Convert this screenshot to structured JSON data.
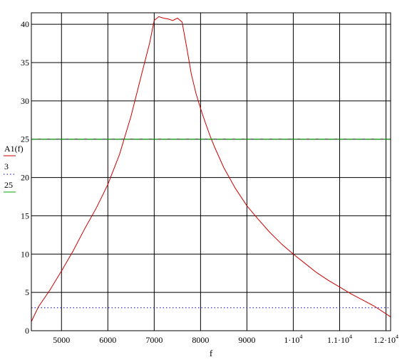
{
  "chart_data": {
    "type": "line",
    "xlabel": "f",
    "xlim": [
      4350,
      12100
    ],
    "ylim": [
      0,
      41.5
    ],
    "grid": true,
    "x_ticks": [
      {
        "value": 5000,
        "label": "5000"
      },
      {
        "value": 6000,
        "label": "6000"
      },
      {
        "value": 7000,
        "label": "7000"
      },
      {
        "value": 8000,
        "label": "8000"
      },
      {
        "value": 9000,
        "label": "9000"
      },
      {
        "value": 10000,
        "label": "1·10",
        "exp": "4"
      },
      {
        "value": 11000,
        "label": "1.1·10",
        "exp": "4"
      },
      {
        "value": 12000,
        "label": "1.2·10",
        "exp": "4"
      }
    ],
    "y_ticks": [
      {
        "value": 0,
        "label": "0"
      },
      {
        "value": 5,
        "label": "5"
      },
      {
        "value": 10,
        "label": "10"
      },
      {
        "value": 15,
        "label": "15"
      },
      {
        "value": 20,
        "label": "20"
      },
      {
        "value": 25,
        "label": "25"
      },
      {
        "value": 30,
        "label": "30"
      },
      {
        "value": 35,
        "label": "35"
      },
      {
        "value": 40,
        "label": "40"
      }
    ],
    "series": [
      {
        "name": "A1(f)",
        "color": "#cc0000",
        "style": "solid",
        "x": [
          4350,
          4500,
          4750,
          5000,
          5250,
          5500,
          5750,
          6000,
          6250,
          6500,
          6750,
          6900,
          7000,
          7100,
          7200,
          7300,
          7400,
          7500,
          7600,
          7700,
          7800,
          7900,
          8000,
          8100,
          8200,
          8300,
          8500,
          8750,
          9000,
          9250,
          9500,
          9750,
          10000,
          10250,
          10500,
          10750,
          11000,
          11250,
          11500,
          11750,
          12100
        ],
        "y": [
          1.2,
          3.1,
          5.3,
          7.8,
          10.4,
          13.3,
          16.0,
          19.1,
          23.0,
          28.0,
          34.0,
          37.5,
          40.5,
          41.0,
          40.8,
          40.7,
          40.5,
          40.8,
          40.3,
          37.0,
          33.5,
          31.0,
          29.0,
          27.2,
          25.5,
          24.0,
          21.3,
          18.6,
          16.3,
          14.5,
          12.8,
          11.3,
          10.0,
          8.8,
          7.6,
          6.6,
          5.7,
          4.8,
          4.0,
          3.2,
          1.8
        ]
      },
      {
        "name": "3",
        "color": "#0000cc",
        "style": "dotted",
        "x": [
          4350,
          12100
        ],
        "y": [
          3,
          3
        ]
      },
      {
        "name": "25",
        "color": "#00aa00",
        "style": "dashed",
        "x": [
          4350,
          12100
        ],
        "y": [
          25,
          25
        ]
      }
    ]
  }
}
